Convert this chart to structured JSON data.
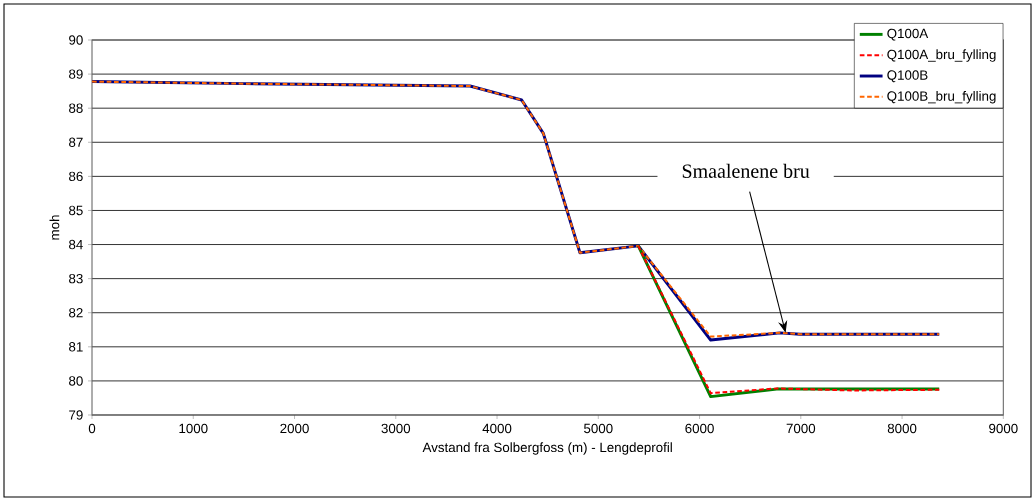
{
  "chart_data": {
    "type": "line",
    "xlabel": "Avstand fra Solbergfoss (m) - Lengdeprofil",
    "ylabel": "moh",
    "xlim": [
      0,
      9000
    ],
    "xticks": [
      0,
      1000,
      2000,
      3000,
      4000,
      5000,
      6000,
      7000,
      8000,
      9000
    ],
    "ylim": [
      79,
      90
    ],
    "yticks": [
      79,
      80,
      81,
      82,
      83,
      84,
      85,
      86,
      87,
      88,
      89,
      90
    ],
    "grid": "y",
    "legend": "top right",
    "marker": "none",
    "annotations": [
      {
        "text": "Smaalenene bru",
        "x": 6850,
        "y": 81.41
      }
    ],
    "x": [
      0,
      1500,
      3733,
      4243,
      4457,
      4819,
      5395,
      6110,
      6795,
      6992,
      8367
    ],
    "series": [
      {
        "name": "Q100A",
        "color": "#008000",
        "line_style": "solid",
        "x": [
          5395,
          6110,
          6762,
          8367
        ],
        "values": [
          83.96,
          79.54,
          79.76,
          79.76
        ]
      },
      {
        "name": "Q100A_bru_fylling",
        "color": "#ff0000",
        "line_style": "dashed",
        "x": [
          5395,
          6110,
          6762,
          7500,
          8367
        ],
        "values": [
          83.96,
          79.64,
          79.78,
          79.72,
          79.74
        ]
      },
      {
        "name": "Q100B",
        "color": "#000080",
        "line_style": "solid",
        "values": [
          88.78,
          88.72,
          88.65,
          88.24,
          87.26,
          83.76,
          83.96,
          81.2,
          81.41,
          81.37,
          81.37
        ]
      },
      {
        "name": "Q100B_bru_fylling",
        "color": "#ff6600",
        "line_style": "dashed",
        "values": [
          88.78,
          88.72,
          88.65,
          88.24,
          87.26,
          83.76,
          83.96,
          81.3,
          81.41,
          81.37,
          81.37
        ]
      }
    ]
  }
}
